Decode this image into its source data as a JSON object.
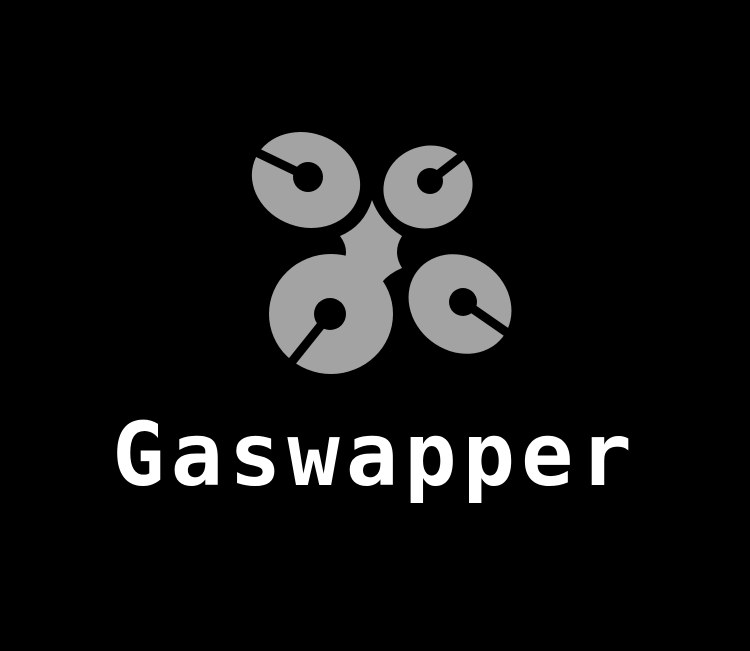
{
  "brand": {
    "name": "Gaswapper",
    "logo_icon": "four-cylinder-disc-icon"
  },
  "colors": {
    "background": "#000000",
    "logo_fill": "#a3a3a3",
    "wordmark": "#ffffff"
  }
}
